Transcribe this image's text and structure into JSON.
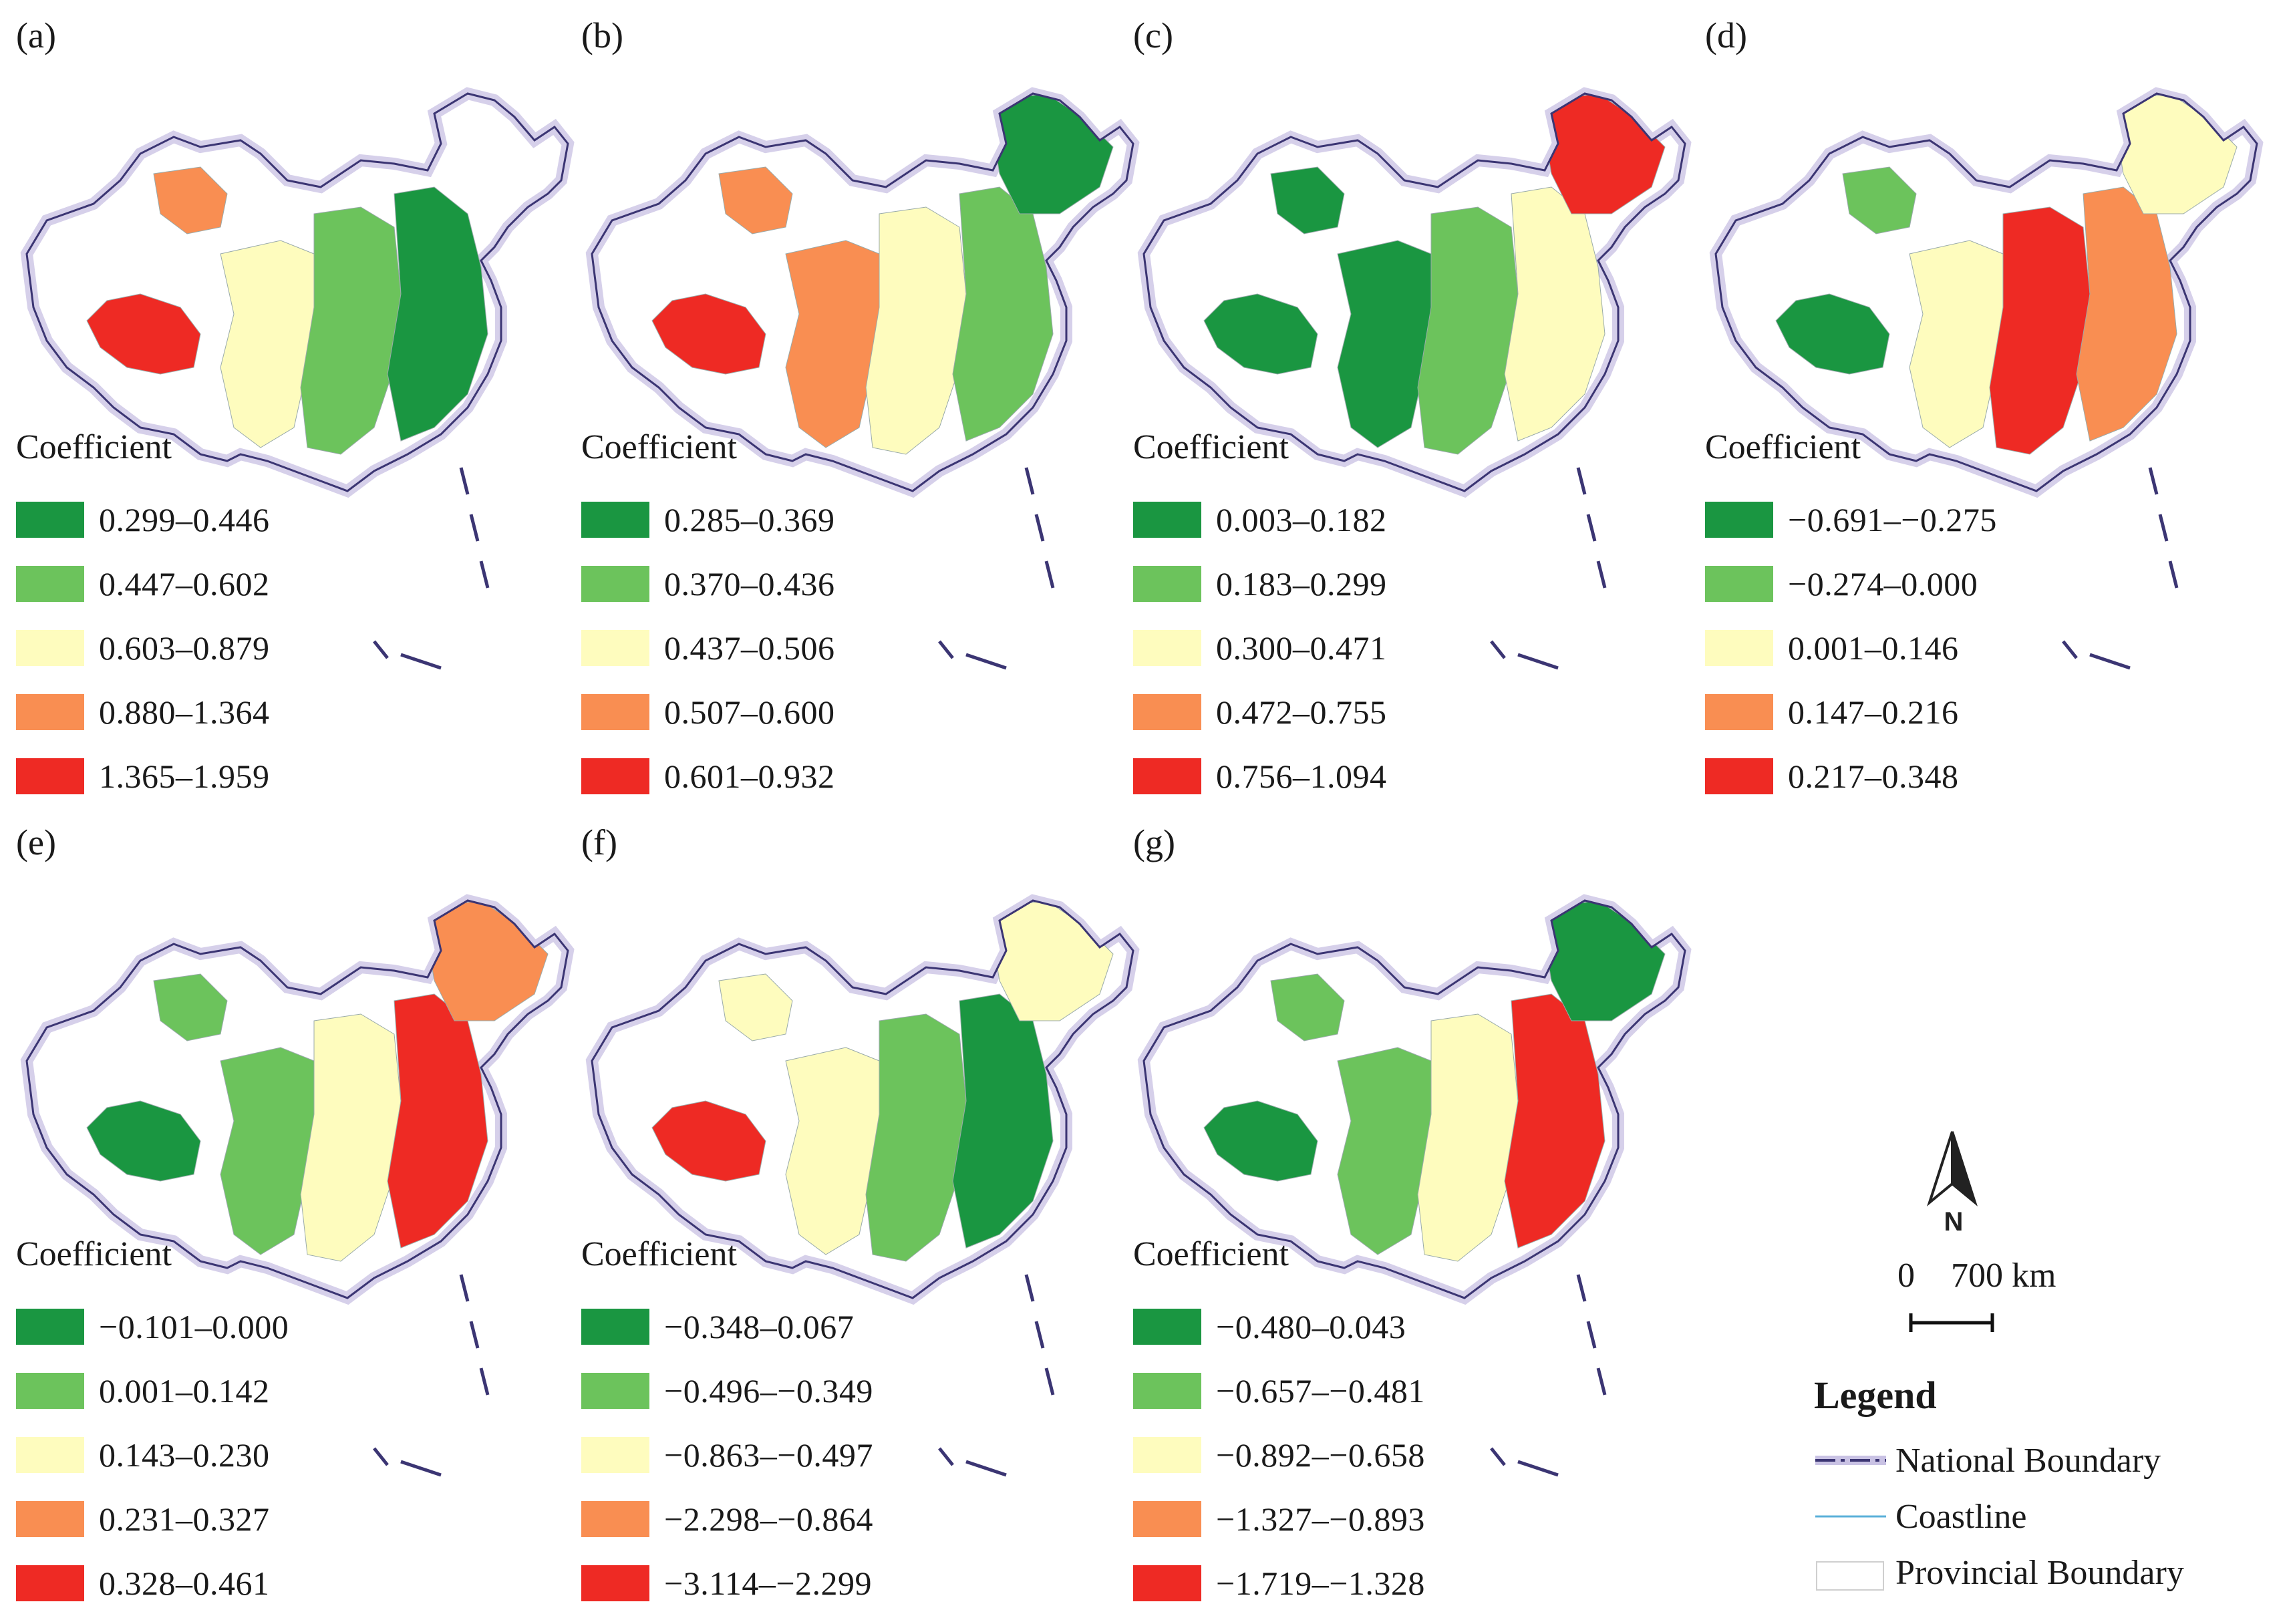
{
  "legend_title": "Coefficient",
  "panels": [
    {
      "id": "a",
      "label": "(a)",
      "scheme": [
        "red",
        "orange",
        "yellow",
        "lightgreen",
        "darkgreen"
      ],
      "classes": [
        "0.299–0.446",
        "0.447–0.602",
        "0.603–0.879",
        "0.880–1.364",
        "1.365–1.959"
      ]
    },
    {
      "id": "b",
      "label": "(b)",
      "scheme": [
        "red",
        "orange",
        "orange",
        "yellow",
        "lightgreen",
        "darkgreen"
      ],
      "classes": [
        "0.285–0.369",
        "0.370–0.436",
        "0.437–0.506",
        "0.507–0.600",
        "0.601–0.932"
      ]
    },
    {
      "id": "c",
      "label": "(c)",
      "scheme": [
        "darkgreen",
        "darkgreen",
        "darkgreen",
        "lightgreen",
        "yellow",
        "red"
      ],
      "classes": [
        "0.003–0.182",
        "0.183–0.299",
        "0.300–0.471",
        "0.472–0.755",
        "0.756–1.094"
      ]
    },
    {
      "id": "d",
      "label": "(d)",
      "scheme": [
        "darkgreen",
        "lightgreen",
        "yellow",
        "red",
        "orange",
        "yellow"
      ],
      "classes": [
        "−0.691–−0.275",
        "−0.274–0.000",
        "0.001–0.146",
        "0.147–0.216",
        "0.217–0.348"
      ]
    },
    {
      "id": "e",
      "label": "(e)",
      "scheme": [
        "darkgreen",
        "lightgreen",
        "lightgreen",
        "yellow",
        "red",
        "orange"
      ],
      "classes": [
        "−0.101–0.000",
        "0.001–0.142",
        "0.143–0.230",
        "0.231–0.327",
        "0.328–0.461"
      ]
    },
    {
      "id": "f",
      "label": "(f)",
      "scheme": [
        "red",
        "yellow",
        "yellow",
        "lightgreen",
        "darkgreen",
        "yellow"
      ],
      "classes": [
        "−0.348–0.067",
        "−0.496–−0.349",
        "−0.863–−0.497",
        "−2.298–−0.864",
        "−3.114–−2.299"
      ]
    },
    {
      "id": "g",
      "label": "(g)",
      "scheme": [
        "darkgreen",
        "lightgreen",
        "lightgreen",
        "yellow",
        "red",
        "darkgreen"
      ],
      "classes": [
        "−0.480–0.043",
        "−0.657–−0.481",
        "−0.892–−0.658",
        "−1.327–−0.893",
        "−1.719–−1.328"
      ]
    }
  ],
  "class_colors": [
    "#1a9641",
    "#6cc35c",
    "#fefcbe",
    "#f98e52",
    "#ee2a24"
  ],
  "scheme_colors": {
    "darkgreen": "#1a9641",
    "lightgreen": "#6cc35c",
    "yellow": "#fefcbe",
    "orange": "#f98e52",
    "red": "#ee2a24"
  },
  "north_label": "N",
  "scale": {
    "zero": "0",
    "distance": "700 km"
  },
  "main_legend": {
    "title": "Legend",
    "items": [
      {
        "label": "National Boundary",
        "icon": "national-boundary-line"
      },
      {
        "label": "Coastline",
        "icon": "coastline-line"
      },
      {
        "label": "Provincial Boundary",
        "icon": "provincial-boundary-box"
      }
    ]
  }
}
